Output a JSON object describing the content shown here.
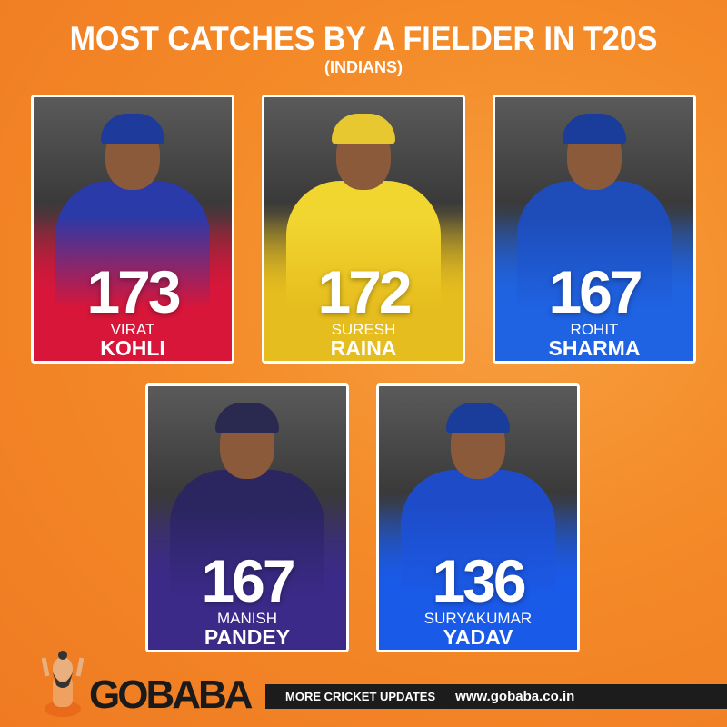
{
  "header": {
    "title": "MOST CATCHES BY A FIELDER IN T20S",
    "subtitle": "(INDIANS)"
  },
  "players": [
    {
      "catches": "173",
      "first_name": "VIRAT",
      "last_name": "KOHLI",
      "color": "#d8163a",
      "cap": "#1e3a9a",
      "shirt": "#2a3aa8"
    },
    {
      "catches": "172",
      "first_name": "SURESH",
      "last_name": "RAINA",
      "color": "#e6bd1e",
      "cap": "#e8c830",
      "shirt": "#f2d630"
    },
    {
      "catches": "167",
      "first_name": "ROHIT",
      "last_name": "SHARMA",
      "color": "#1f62e2",
      "cap": "#1a3c9a",
      "shirt": "#1e4cb8"
    },
    {
      "catches": "167",
      "first_name": "MANISH",
      "last_name": "PANDEY",
      "color": "#3b2a88",
      "cap": "#2a2a50",
      "shirt": "#2b2560"
    },
    {
      "catches": "136",
      "first_name": "SURYAKUMAR",
      "last_name": "YADAV",
      "color": "#1a5ae8",
      "cap": "#1a3c9a",
      "shirt": "#1e4cc8"
    }
  ],
  "footer": {
    "brand": "GOBABA",
    "tagline": "MORE CRICKET UPDATES",
    "website": "www.gobaba.co.in"
  }
}
